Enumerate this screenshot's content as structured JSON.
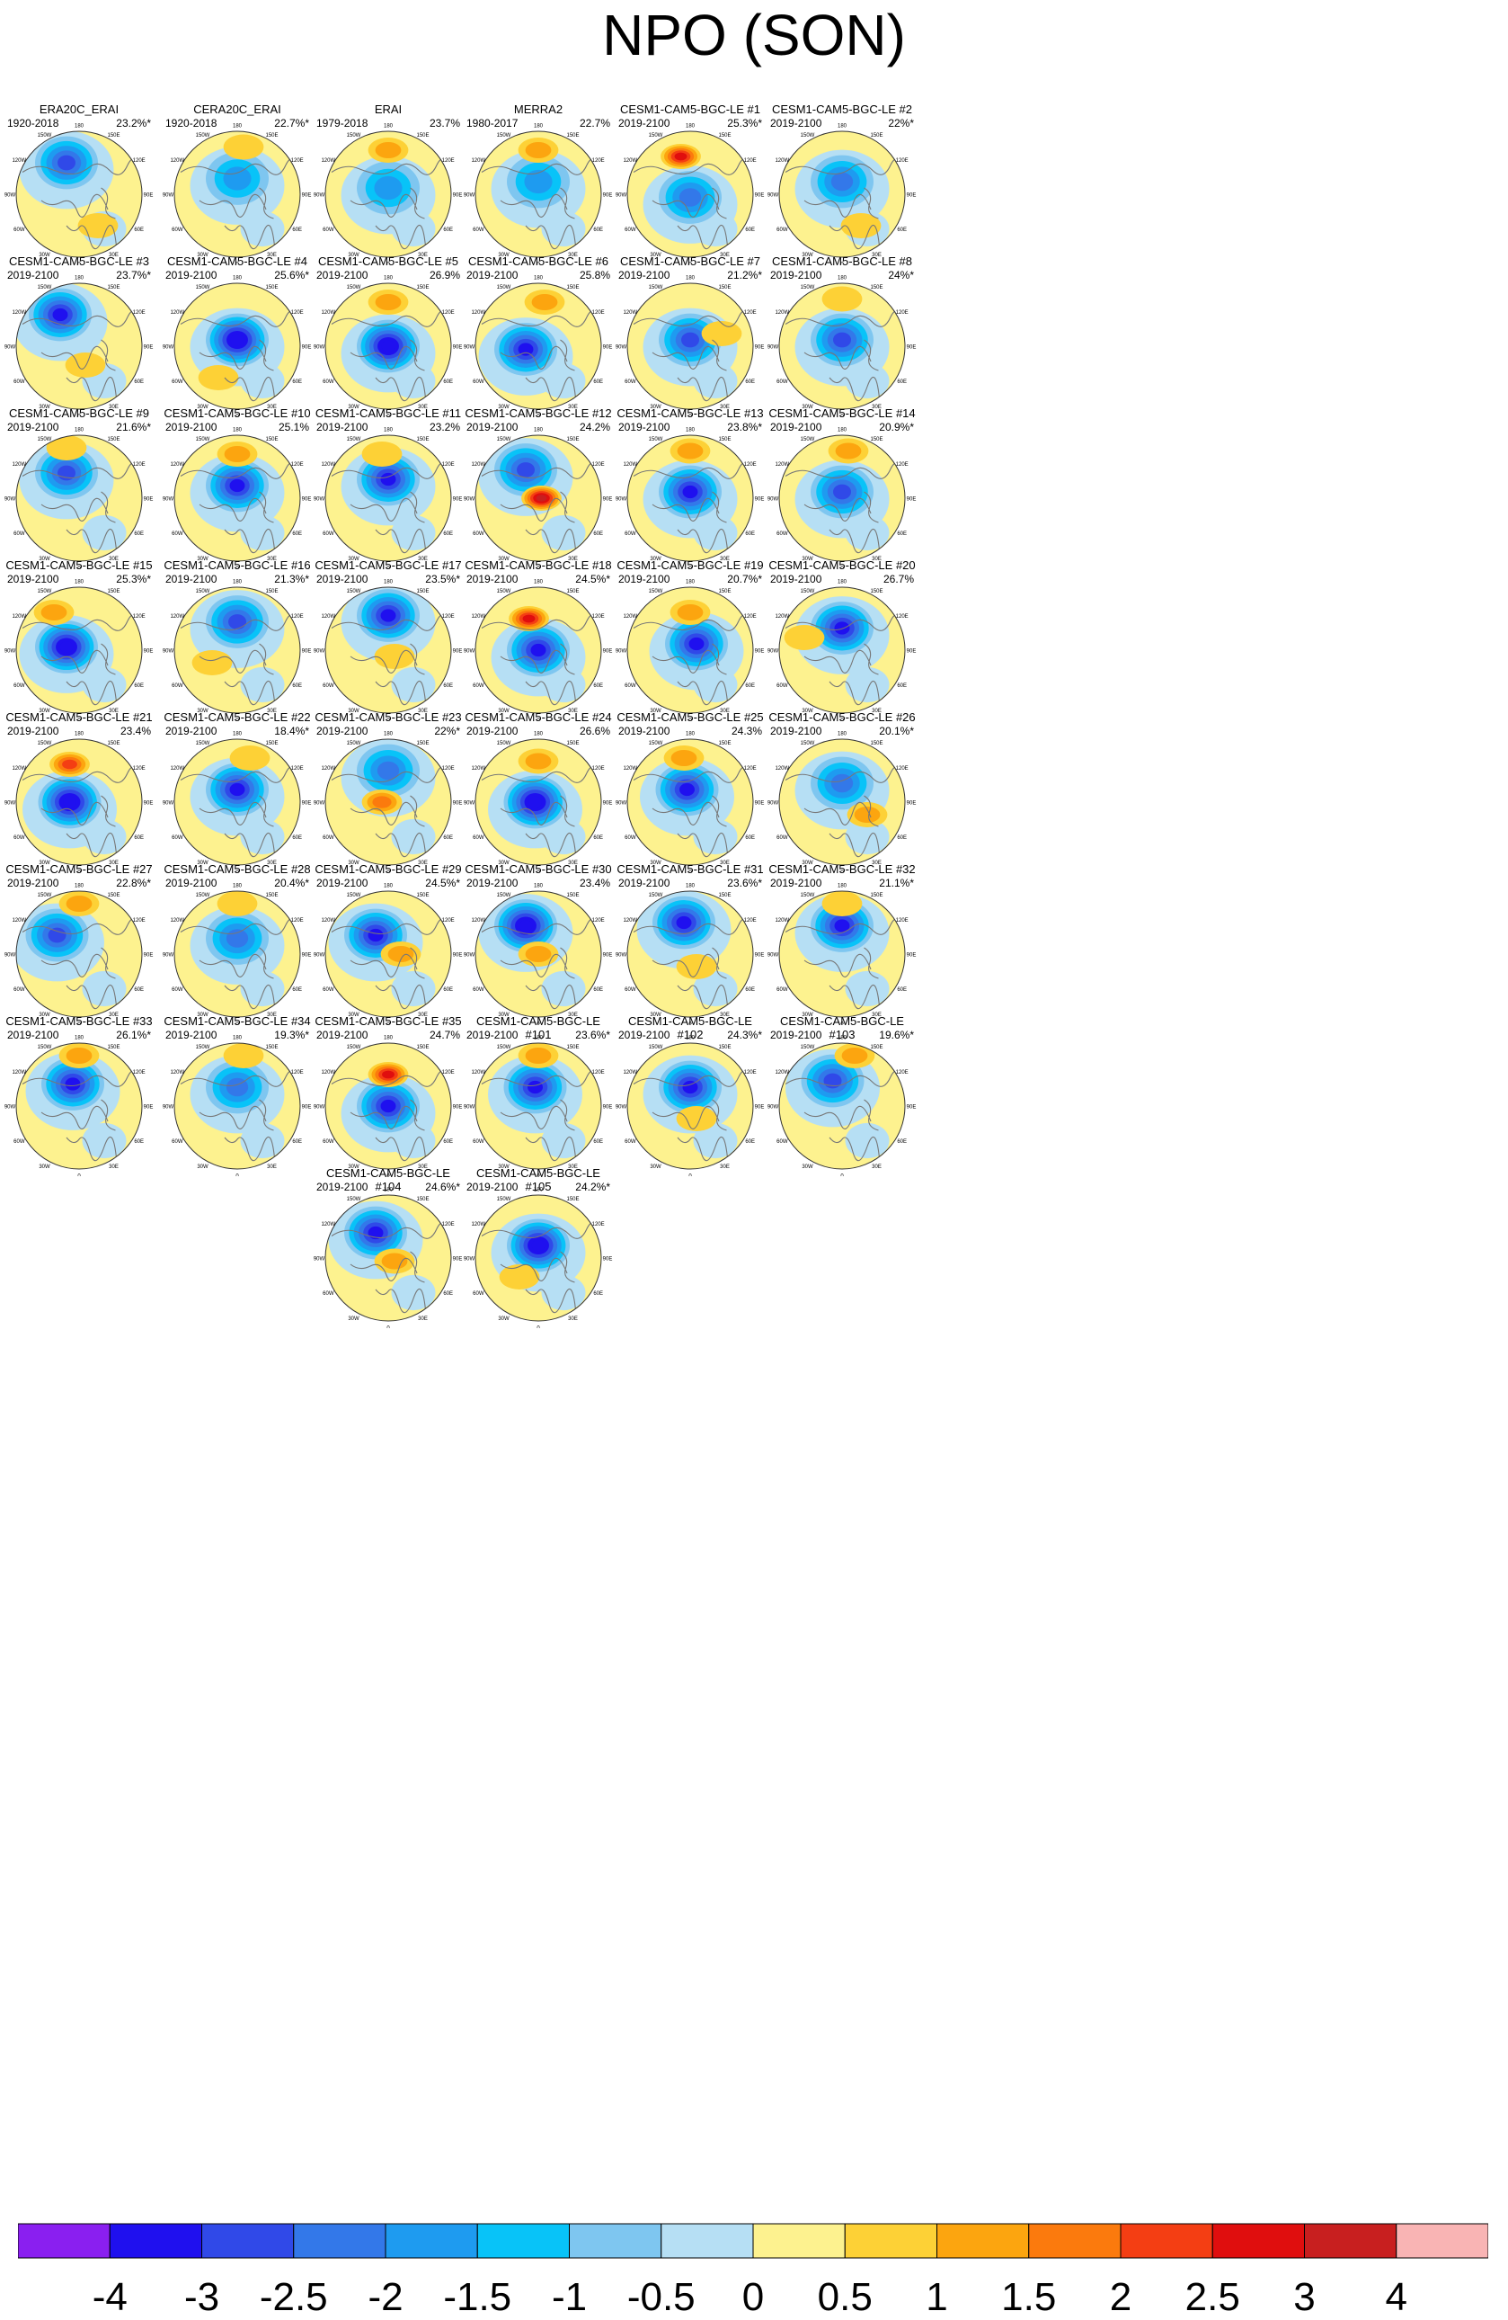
{
  "chart_data": {
    "type": "heatmap",
    "title": "NPO (SON)",
    "colorbar": {
      "levels": [
        "-4",
        "-3",
        "-2.5",
        "-2",
        "-1.5",
        "-1",
        "-0.5",
        "0",
        "0.5",
        "1",
        "1.5",
        "2",
        "2.5",
        "3",
        "4"
      ],
      "colors": [
        "#8a1ff0",
        "#1f10ef",
        "#3049e8",
        "#3378e9",
        "#1e9bf0",
        "#08c3f8",
        "#7ec6f0",
        "#b6dff4",
        "#fdf28f",
        "#fdd136",
        "#fca50f",
        "#fb7a0d",
        "#f43e13",
        "#e00e0e",
        "#c81f1f",
        "#f9b4b4"
      ]
    },
    "panels": [
      {
        "title": "ERA20C_ERAI",
        "period": "1920-2018",
        "variance": "23.2%*"
      },
      {
        "title": "CERA20C_ERAI",
        "period": "1920-2018",
        "variance": "22.7%*"
      },
      {
        "title": "ERAI",
        "period": "1979-2018",
        "variance": "23.7%"
      },
      {
        "title": "MERRA2",
        "period": "1980-2017",
        "variance": "22.7%"
      },
      {
        "title": "CESM1-CAM5-BGC-LE #1",
        "period": "2019-2100",
        "variance": "25.3%*"
      },
      {
        "title": "CESM1-CAM5-BGC-LE #2",
        "period": "2019-2100",
        "variance": "22%*"
      },
      {
        "title": "CESM1-CAM5-BGC-LE #3",
        "period": "2019-2100",
        "variance": "23.7%*"
      },
      {
        "title": "CESM1-CAM5-BGC-LE #4",
        "period": "2019-2100",
        "variance": "25.6%*"
      },
      {
        "title": "CESM1-CAM5-BGC-LE #5",
        "period": "2019-2100",
        "variance": "26.9%"
      },
      {
        "title": "CESM1-CAM5-BGC-LE #6",
        "period": "2019-2100",
        "variance": "25.8%"
      },
      {
        "title": "CESM1-CAM5-BGC-LE #7",
        "period": "2019-2100",
        "variance": "21.2%*"
      },
      {
        "title": "CESM1-CAM5-BGC-LE #8",
        "period": "2019-2100",
        "variance": "24%*"
      },
      {
        "title": "CESM1-CAM5-BGC-LE #9",
        "period": "2019-2100",
        "variance": "21.6%*"
      },
      {
        "title": "CESM1-CAM5-BGC-LE #10",
        "period": "2019-2100",
        "variance": "25.1%"
      },
      {
        "title": "CESM1-CAM5-BGC-LE #11",
        "period": "2019-2100",
        "variance": "23.2%"
      },
      {
        "title": "CESM1-CAM5-BGC-LE #12",
        "period": "2019-2100",
        "variance": "24.2%"
      },
      {
        "title": "CESM1-CAM5-BGC-LE #13",
        "period": "2019-2100",
        "variance": "23.8%*"
      },
      {
        "title": "CESM1-CAM5-BGC-LE #14",
        "period": "2019-2100",
        "variance": "20.9%*"
      },
      {
        "title": "CESM1-CAM5-BGC-LE #15",
        "period": "2019-2100",
        "variance": "25.3%*"
      },
      {
        "title": "CESM1-CAM5-BGC-LE #16",
        "period": "2019-2100",
        "variance": "21.3%*"
      },
      {
        "title": "CESM1-CAM5-BGC-LE #17",
        "period": "2019-2100",
        "variance": "23.5%*"
      },
      {
        "title": "CESM1-CAM5-BGC-LE #18",
        "period": "2019-2100",
        "variance": "24.5%*"
      },
      {
        "title": "CESM1-CAM5-BGC-LE #19",
        "period": "2019-2100",
        "variance": "20.7%*"
      },
      {
        "title": "CESM1-CAM5-BGC-LE #20",
        "period": "2019-2100",
        "variance": "26.7%"
      },
      {
        "title": "CESM1-CAM5-BGC-LE #21",
        "period": "2019-2100",
        "variance": "23.4%"
      },
      {
        "title": "CESM1-CAM5-BGC-LE #22",
        "period": "2019-2100",
        "variance": "18.4%*"
      },
      {
        "title": "CESM1-CAM5-BGC-LE #23",
        "period": "2019-2100",
        "variance": "22%*"
      },
      {
        "title": "CESM1-CAM5-BGC-LE #24",
        "period": "2019-2100",
        "variance": "26.6%"
      },
      {
        "title": "CESM1-CAM5-BGC-LE #25",
        "period": "2019-2100",
        "variance": "24.3%"
      },
      {
        "title": "CESM1-CAM5-BGC-LE #26",
        "period": "2019-2100",
        "variance": "20.1%*"
      },
      {
        "title": "CESM1-CAM5-BGC-LE #27",
        "period": "2019-2100",
        "variance": "22.8%*"
      },
      {
        "title": "CESM1-CAM5-BGC-LE #28",
        "period": "2019-2100",
        "variance": "20.4%*"
      },
      {
        "title": "CESM1-CAM5-BGC-LE #29",
        "period": "2019-2100",
        "variance": "24.5%*"
      },
      {
        "title": "CESM1-CAM5-BGC-LE #30",
        "period": "2019-2100",
        "variance": "23.4%"
      },
      {
        "title": "CESM1-CAM5-BGC-LE #31",
        "period": "2019-2100",
        "variance": "23.6%*"
      },
      {
        "title": "CESM1-CAM5-BGC-LE #32",
        "period": "2019-2100",
        "variance": "21.1%*"
      },
      {
        "title": "CESM1-CAM5-BGC-LE #33",
        "period": "2019-2100",
        "variance": "26.1%*"
      },
      {
        "title": "CESM1-CAM5-BGC-LE #34",
        "period": "2019-2100",
        "variance": "19.3%*"
      },
      {
        "title": "CESM1-CAM5-BGC-LE #35",
        "period": "2019-2100",
        "variance": "24.7%"
      },
      {
        "title": "CESM1-CAM5-BGC-LE #101",
        "period": "2019-2100",
        "variance": "23.6%*"
      },
      {
        "title": "CESM1-CAM5-BGC-LE #102",
        "period": "2019-2100",
        "variance": "24.3%*"
      },
      {
        "title": "CESM1-CAM5-BGC-LE #103",
        "period": "2019-2100",
        "variance": "19.6%*"
      },
      {
        "title": "CESM1-CAM5-BGC-LE #104",
        "period": "2019-2100",
        "variance": "24.6%*"
      },
      {
        "title": "CESM1-CAM5-BGC-LE #105",
        "period": "2019-2100",
        "variance": "24.2%*"
      }
    ],
    "map_labels": {
      "lon": [
        "180",
        "150W",
        "150E",
        "120W",
        "120E",
        "90W",
        "90E",
        "60W",
        "60E",
        "30W",
        "30E",
        "0"
      ]
    },
    "patterns": [
      {
        "low": -2.5,
        "lowpos": [
          -0.2,
          -0.5
        ],
        "high": 0.5,
        "highpos": [
          0.3,
          0.5
        ]
      },
      {
        "low": -1.5,
        "lowpos": [
          0.0,
          -0.25
        ],
        "high": 0.5,
        "highpos": [
          0.1,
          -0.75
        ]
      },
      {
        "low": -1.5,
        "lowpos": [
          0.0,
          -0.1
        ],
        "high": 1.0,
        "highpos": [
          0.0,
          -0.7
        ]
      },
      {
        "low": -1.5,
        "lowpos": [
          0.0,
          -0.2
        ],
        "high": 1.0,
        "highpos": [
          0.0,
          -0.7
        ]
      },
      {
        "low": -2.0,
        "lowpos": [
          0.0,
          0.05
        ],
        "high": 2.5,
        "highpos": [
          -0.15,
          -0.6
        ]
      },
      {
        "low": -2.0,
        "lowpos": [
          0.0,
          -0.2
        ],
        "high": 0.5,
        "highpos": [
          0.3,
          0.5
        ]
      },
      {
        "low": -3.0,
        "lowpos": [
          -0.3,
          -0.5
        ],
        "high": 0.5,
        "highpos": [
          0.1,
          0.3
        ]
      },
      {
        "low": -3.5,
        "lowpos": [
          0.0,
          -0.1
        ],
        "high": 0.5,
        "highpos": [
          -0.3,
          0.5
        ]
      },
      {
        "low": -3.5,
        "lowpos": [
          0.0,
          0.0
        ],
        "high": 1.0,
        "highpos": [
          0.0,
          -0.7
        ]
      },
      {
        "low": -3.0,
        "lowpos": [
          -0.2,
          0.05
        ],
        "high": 1.0,
        "highpos": [
          0.1,
          -0.7
        ]
      },
      {
        "low": -2.5,
        "lowpos": [
          0.0,
          -0.1
        ],
        "high": 0.5,
        "highpos": [
          0.5,
          -0.2
        ]
      },
      {
        "low": -2.5,
        "lowpos": [
          0.0,
          -0.1
        ],
        "high": 0.5,
        "highpos": [
          0.0,
          -0.75
        ]
      },
      {
        "low": -2.5,
        "lowpos": [
          -0.2,
          -0.4
        ],
        "high": 0.5,
        "highpos": [
          -0.2,
          -0.8
        ]
      },
      {
        "low": -3.0,
        "lowpos": [
          0.0,
          -0.2
        ],
        "high": 1.0,
        "highpos": [
          0.0,
          -0.7
        ]
      },
      {
        "low": -3.0,
        "lowpos": [
          0.0,
          -0.3
        ],
        "high": 0.5,
        "highpos": [
          -0.1,
          -0.7
        ]
      },
      {
        "low": -2.5,
        "lowpos": [
          -0.2,
          -0.45
        ],
        "high": 3.0,
        "highpos": [
          0.05,
          0.0
        ]
      },
      {
        "low": -3.0,
        "lowpos": [
          0.0,
          -0.1
        ],
        "high": 1.0,
        "highpos": [
          0.0,
          -0.75
        ]
      },
      {
        "low": -2.5,
        "lowpos": [
          0.0,
          -0.1
        ],
        "high": 1.0,
        "highpos": [
          0.1,
          -0.75
        ]
      },
      {
        "low": -3.5,
        "lowpos": [
          -0.2,
          -0.05
        ],
        "high": 1.0,
        "highpos": [
          -0.4,
          -0.6
        ]
      },
      {
        "low": -2.5,
        "lowpos": [
          0.0,
          -0.45
        ],
        "high": 0.5,
        "highpos": [
          -0.4,
          0.2
        ]
      },
      {
        "low": -3.0,
        "lowpos": [
          0.0,
          -0.55
        ],
        "high": 0.5,
        "highpos": [
          0.1,
          0.1
        ]
      },
      {
        "low": -3.0,
        "lowpos": [
          0.0,
          0.0
        ],
        "high": 2.5,
        "highpos": [
          -0.15,
          -0.5
        ]
      },
      {
        "low": -3.0,
        "lowpos": [
          0.1,
          -0.1
        ],
        "high": 1.0,
        "highpos": [
          0.0,
          -0.6
        ]
      },
      {
        "low": -3.0,
        "lowpos": [
          0.0,
          -0.35
        ],
        "high": 0.5,
        "highpos": [
          -0.6,
          -0.2
        ]
      },
      {
        "low": -3.5,
        "lowpos": [
          -0.15,
          0.0
        ],
        "high": 2.0,
        "highpos": [
          -0.15,
          -0.6
        ]
      },
      {
        "low": -3.0,
        "lowpos": [
          0.0,
          -0.2
        ],
        "high": 0.5,
        "highpos": [
          0.2,
          -0.7
        ]
      },
      {
        "low": -2.0,
        "lowpos": [
          0.0,
          -0.5
        ],
        "high": 1.5,
        "highpos": [
          -0.1,
          0.0
        ]
      },
      {
        "low": -3.5,
        "lowpos": [
          -0.05,
          0.0
        ],
        "high": 1.0,
        "highpos": [
          0.0,
          -0.65
        ]
      },
      {
        "low": -3.0,
        "lowpos": [
          -0.05,
          -0.2
        ],
        "high": 1.0,
        "highpos": [
          -0.1,
          -0.7
        ]
      },
      {
        "low": -2.0,
        "lowpos": [
          0.0,
          -0.3
        ],
        "high": 1.0,
        "highpos": [
          0.4,
          0.2
        ]
      },
      {
        "low": -2.5,
        "lowpos": [
          -0.35,
          -0.3
        ],
        "high": 1.0,
        "highpos": [
          0.0,
          -0.8
        ]
      },
      {
        "low": -2.0,
        "lowpos": [
          0.0,
          -0.25
        ],
        "high": 0.5,
        "highpos": [
          0.0,
          -0.8
        ]
      },
      {
        "low": -3.0,
        "lowpos": [
          -0.2,
          -0.3
        ],
        "high": 1.0,
        "highpos": [
          0.2,
          0.0
        ]
      },
      {
        "low": -3.5,
        "lowpos": [
          -0.2,
          -0.45
        ],
        "high": 1.0,
        "highpos": [
          0.0,
          0.0
        ]
      },
      {
        "low": -3.0,
        "lowpos": [
          -0.1,
          -0.5
        ],
        "high": 0.5,
        "highpos": [
          0.1,
          0.2
        ]
      },
      {
        "low": -3.0,
        "lowpos": [
          0.0,
          -0.45
        ],
        "high": 0.5,
        "highpos": [
          0.0,
          -0.8
        ]
      },
      {
        "low": -3.0,
        "lowpos": [
          -0.1,
          -0.35
        ],
        "high": 1.0,
        "highpos": [
          0.0,
          -0.8
        ]
      },
      {
        "low": -2.0,
        "lowpos": [
          0.0,
          -0.3
        ],
        "high": 0.5,
        "highpos": [
          0.1,
          -0.8
        ]
      },
      {
        "low": -3.0,
        "lowpos": [
          0.0,
          0.0
        ],
        "high": 2.5,
        "highpos": [
          0.0,
          -0.5
        ]
      },
      {
        "low": -3.0,
        "lowpos": [
          -0.05,
          -0.3
        ],
        "high": 1.0,
        "highpos": [
          0.0,
          -0.8
        ]
      },
      {
        "low": -3.0,
        "lowpos": [
          0.0,
          -0.3
        ],
        "high": 0.5,
        "highpos": [
          0.1,
          0.2
        ]
      },
      {
        "low": -2.5,
        "lowpos": [
          -0.15,
          -0.4
        ],
        "high": 1.0,
        "highpos": [
          0.2,
          -0.8
        ]
      },
      {
        "low": -3.0,
        "lowpos": [
          -0.2,
          -0.4
        ],
        "high": 1.0,
        "highpos": [
          0.1,
          0.05
        ]
      },
      {
        "low": -3.5,
        "lowpos": [
          0.0,
          -0.2
        ],
        "high": 0.5,
        "highpos": [
          -0.3,
          0.3
        ]
      }
    ]
  }
}
